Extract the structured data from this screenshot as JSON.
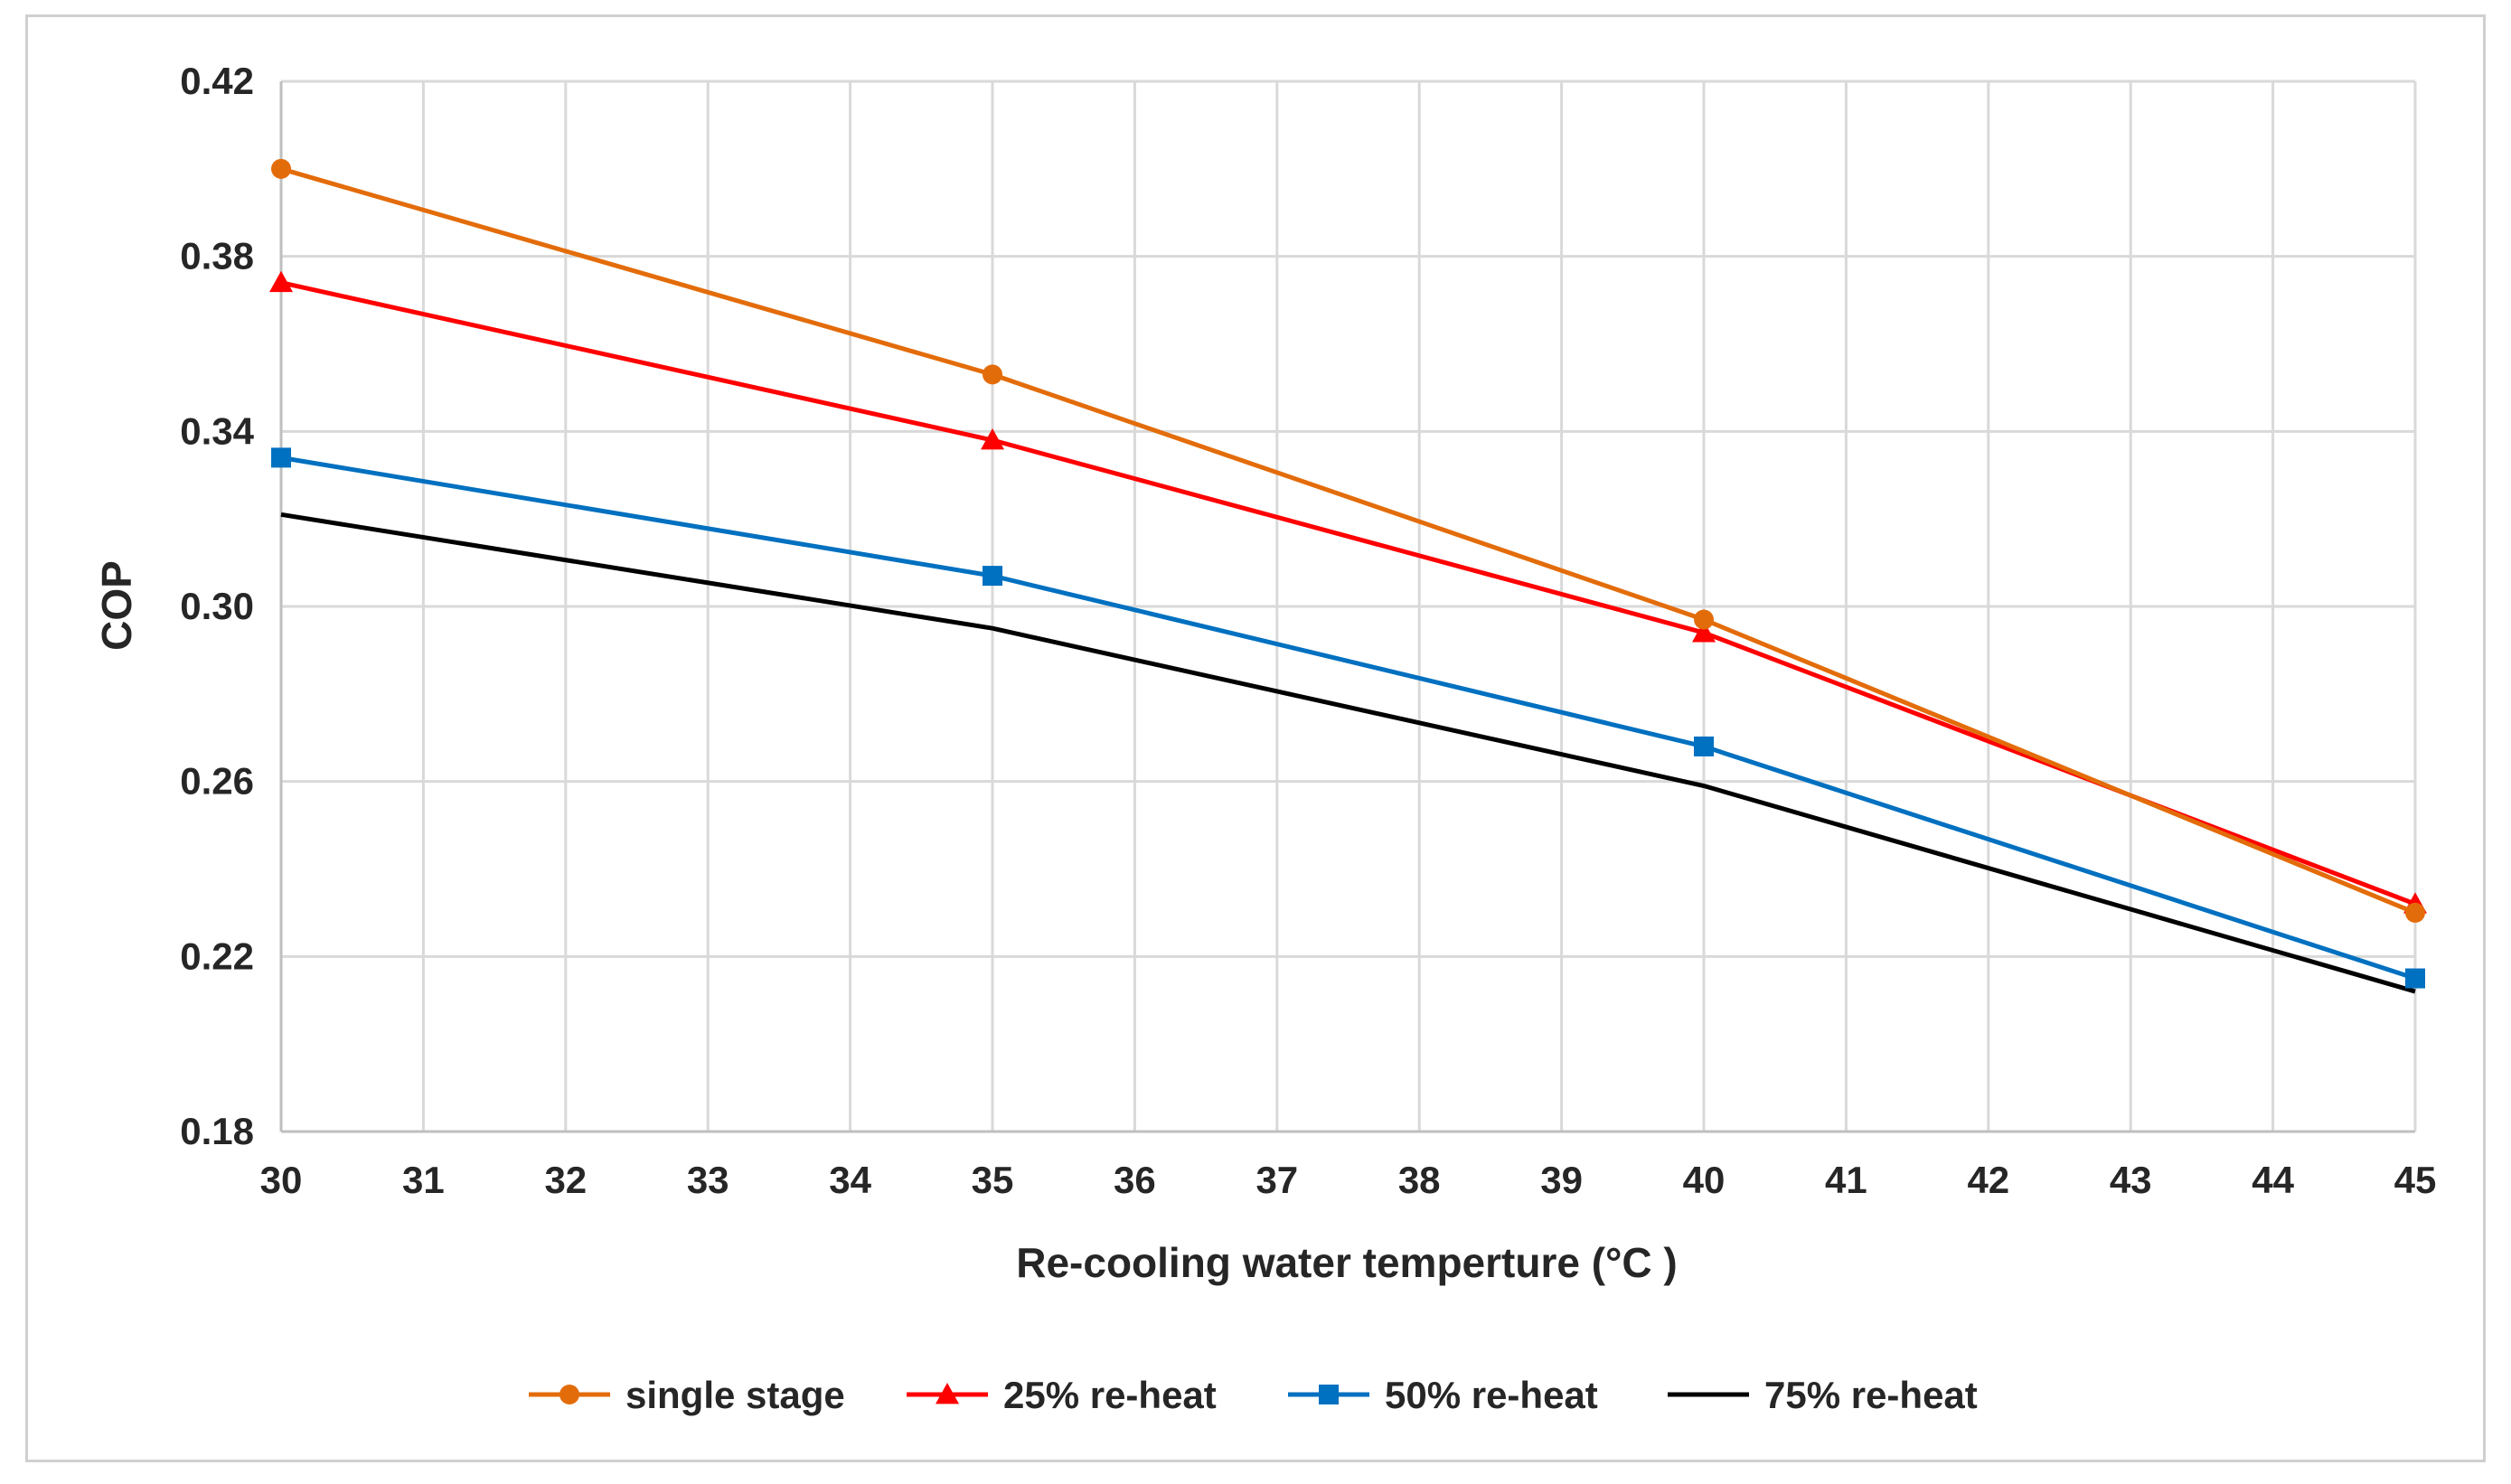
{
  "chart_data": {
    "type": "line",
    "title": "",
    "xlabel": "Re-cooling water temperture (°C )",
    "ylabel": "COP",
    "xlim": [
      30,
      45
    ],
    "ylim": [
      0.18,
      0.42
    ],
    "x_ticks": [
      "30",
      "31",
      "32",
      "33",
      "34",
      "35",
      "36",
      "37",
      "38",
      "39",
      "40",
      "41",
      "42",
      "43",
      "44",
      "45"
    ],
    "y_ticks": [
      "0.18",
      "0.22",
      "0.26",
      "0.30",
      "0.34",
      "0.38",
      "0.42"
    ],
    "grid": true,
    "legend_position": "bottom",
    "series": [
      {
        "name": "single stage",
        "color": "#E36C0A",
        "marker": "circle",
        "x": [
          30,
          35,
          40,
          45
        ],
        "y": [
          0.4,
          0.353,
          0.297,
          0.23
        ]
      },
      {
        "name": "25% re-heat",
        "color": "#FF0000",
        "marker": "triangle",
        "x": [
          30,
          35,
          40,
          45
        ],
        "y": [
          0.374,
          0.338,
          0.294,
          0.232
        ]
      },
      {
        "name": "50% re-heat",
        "color": "#0070C0",
        "marker": "square",
        "x": [
          30,
          35,
          40,
          45
        ],
        "y": [
          0.334,
          0.307,
          0.268,
          0.215
        ]
      },
      {
        "name": "75% re-heat",
        "color": "#000000",
        "marker": "none",
        "x": [
          30,
          35,
          40,
          45
        ],
        "y": [
          0.321,
          0.295,
          0.259,
          0.212
        ]
      }
    ]
  }
}
